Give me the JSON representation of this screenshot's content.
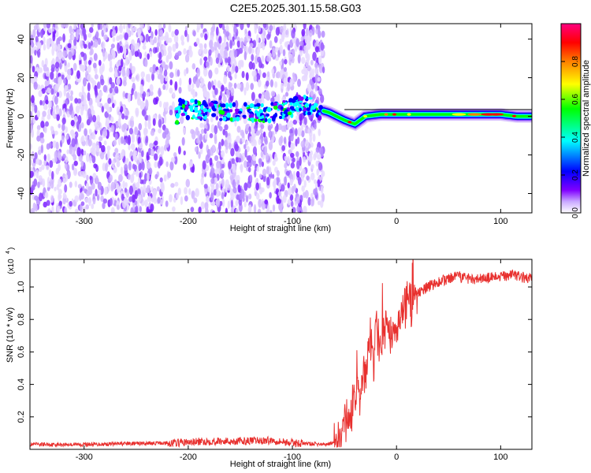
{
  "title": "C2E5.2025.301.15.58.G03",
  "chart_data": [
    {
      "type": "heatmap",
      "xlabel": "Height of straight line (km)",
      "ylabel": "Frequency (Hz)",
      "xlim": [
        -352,
        130
      ],
      "ylim": [
        -50,
        48
      ],
      "x_ticks": [
        -300,
        -200,
        -100,
        0,
        100
      ],
      "y_ticks": [
        -40,
        -20,
        0,
        20,
        40
      ],
      "colorbar": {
        "label": "Normalized spectral amplitude",
        "range": [
          0,
          1
        ],
        "ticks": [
          "0.0",
          "0.2",
          "0.4",
          "0.6",
          "0.8"
        ],
        "colors": [
          "#ffffff",
          "#8000ff",
          "#0000ff",
          "#00ffff",
          "#00ff00",
          "#ffff00",
          "#ff8000",
          "#ff0000",
          "#ff0080"
        ]
      },
      "noise_region_x": [
        -352,
        -70
      ],
      "sparse_gap_x": [
        -220,
        -185
      ],
      "signal_track": [
        {
          "x": -210,
          "y": 4
        },
        {
          "x": -180,
          "y": 3
        },
        {
          "x": -150,
          "y": 2
        },
        {
          "x": -120,
          "y": 2
        },
        {
          "x": -90,
          "y": 6
        },
        {
          "x": -65,
          "y": 2
        },
        {
          "x": -50,
          "y": -2
        },
        {
          "x": -40,
          "y": -4
        },
        {
          "x": -30,
          "y": 0
        },
        {
          "x": -15,
          "y": 1
        },
        {
          "x": 0,
          "y": 1
        },
        {
          "x": 20,
          "y": 1
        },
        {
          "x": 50,
          "y": 1
        },
        {
          "x": 80,
          "y": 1
        },
        {
          "x": 100,
          "y": 1
        },
        {
          "x": 115,
          "y": 0
        },
        {
          "x": 130,
          "y": 0
        }
      ]
    },
    {
      "type": "line",
      "xlabel": "Height of straight line (km)",
      "ylabel": "SNR (10 * v/v)",
      "yscale_note": "(x10",
      "yscale_exp": "4",
      "xlim": [
        -352,
        130
      ],
      "ylim": [
        0,
        1.17
      ],
      "x_ticks": [
        -300,
        -200,
        -100,
        0,
        100
      ],
      "y_ticks": [
        "0.2",
        "0.4",
        "0.6",
        "0.8",
        "1.0"
      ],
      "series": [
        {
          "color": "#e8302e",
          "points": [
            [
              -352,
              0.03
            ],
            [
              -300,
              0.03
            ],
            [
              -260,
              0.035
            ],
            [
              -210,
              0.04
            ],
            [
              -180,
              0.05
            ],
            [
              -150,
              0.05
            ],
            [
              -120,
              0.055
            ],
            [
              -100,
              0.04
            ],
            [
              -70,
              0.03
            ],
            [
              -60,
              0.04
            ],
            [
              -55,
              0.08
            ],
            [
              -50,
              0.15
            ],
            [
              -45,
              0.2
            ],
            [
              -40,
              0.3
            ],
            [
              -35,
              0.35
            ],
            [
              -30,
              0.5
            ],
            [
              -25,
              0.7
            ],
            [
              -22,
              0.4
            ],
            [
              -20,
              0.8
            ],
            [
              -15,
              0.6
            ],
            [
              -10,
              0.8
            ],
            [
              -5,
              0.7
            ],
            [
              0,
              0.75
            ],
            [
              5,
              0.85
            ],
            [
              10,
              0.9
            ],
            [
              20,
              0.95
            ],
            [
              30,
              1.0
            ],
            [
              40,
              1.03
            ],
            [
              50,
              1.05
            ],
            [
              60,
              1.06
            ],
            [
              80,
              1.05
            ],
            [
              100,
              1.06
            ],
            [
              110,
              1.08
            ],
            [
              120,
              1.06
            ],
            [
              130,
              1.05
            ]
          ]
        }
      ]
    }
  ]
}
